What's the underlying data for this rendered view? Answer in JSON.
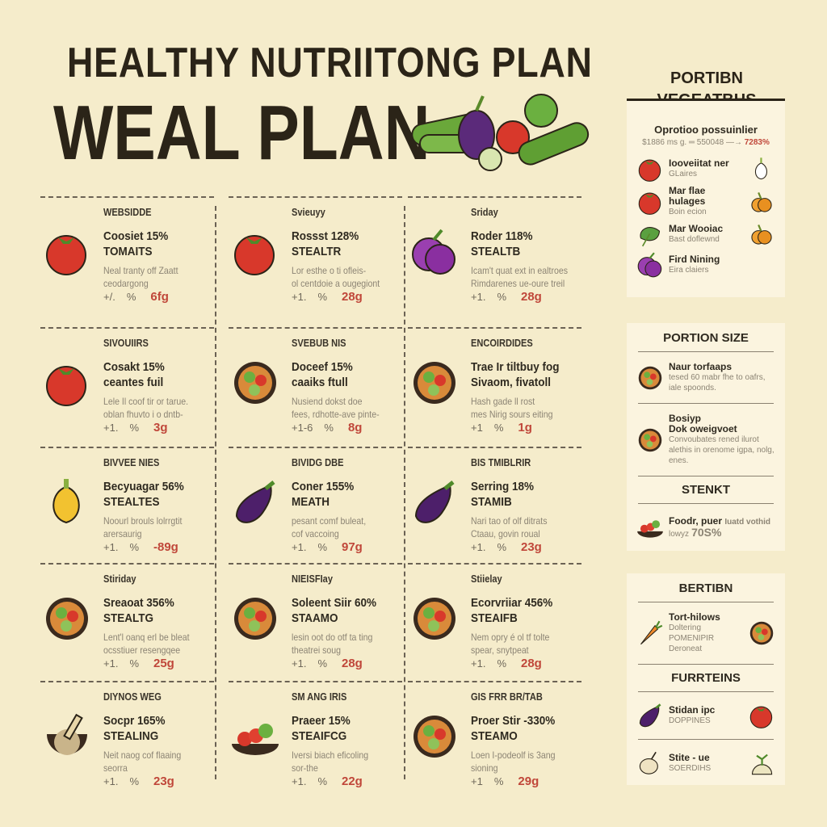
{
  "header": {
    "title_line1": "HEALTHY NUTRIITONG PLAN",
    "title_line2": "WEAL PLAN"
  },
  "colors": {
    "background": "#f5eccb",
    "panel": "#fbf4df",
    "text": "#2f2a20",
    "accent_red": "#c0473a",
    "muted": "#8c8474"
  },
  "grid": [
    {
      "day": "WEBSIDDE",
      "title1": "Coosiet 15%",
      "title2": "TOMAITS",
      "desc1": "Neal tranty off Zaatt",
      "desc2": "ceodargong",
      "stat": "+/.",
      "pct": "%",
      "grams": "6fg",
      "icon": "tomato"
    },
    {
      "day": "Svieuyy",
      "title1": "Rossst 128%",
      "title2": "STEALTR",
      "desc1": "Lor esthe o ti ofleis-",
      "desc2": "ol centdoie a ougegiont",
      "stat": "+1.",
      "pct": "%",
      "grams": "28g",
      "icon": "tomato"
    },
    {
      "day": "Sriday",
      "title1": "Roder 118%",
      "title2": "STEALTB",
      "desc1": "Icam't quat ext in ealtroes",
      "desc2": "Rimdarenes ue-oure treil",
      "stat": "+1.",
      "pct": "%",
      "grams": "28g",
      "icon": "plum"
    },
    {
      "day": "SIVOUIIRS",
      "title1": "Cosakt 15%",
      "title2": "ceantes fuil",
      "desc1": "Lele Il coof tir or tarue.",
      "desc2": "oblan fhuvto i o dntb-",
      "stat": "+1.",
      "pct": "%",
      "grams": "3g",
      "icon": "tomato"
    },
    {
      "day": "SVEBUB NIS",
      "title1": "Doceef 15%",
      "title2": "caaiks ftull",
      "desc1": "Nusiend dokst doe",
      "desc2": "fees, rdhotte-ave pinte-",
      "stat": "+1-6",
      "pct": "%",
      "grams": "8g",
      "icon": "bowl"
    },
    {
      "day": "ENCOIRDIDES",
      "title1": "Trae Ir tiltbuy fog",
      "title2": "Sivaom, fivatoll",
      "desc1": "Hash gade ll rost",
      "desc2": "mes Nirig sours eiting",
      "stat": "+1",
      "pct": "%",
      "grams": "1g",
      "icon": "bowl"
    },
    {
      "day": "BIVVEE NIES",
      "title1": "Becyuagar 56%",
      "title2": "STEALTES",
      "desc1": "Noourl brouls lolrrgtit",
      "desc2": "arersaurig",
      "stat": "+1.",
      "pct": "%",
      "grams": "-89g",
      "icon": "pepper"
    },
    {
      "day": "BIVIDG DBE",
      "title1": "Coner 155%",
      "title2": "MEATH",
      "desc1": "pesant comf buleat,",
      "desc2": "cof vaccoing",
      "stat": "+1.",
      "pct": "%",
      "grams": "97g",
      "icon": "eggplant"
    },
    {
      "day": "BIS TMIBLRIR",
      "title1": "Serring 18%",
      "title2": "STAMIB",
      "desc1": "Nari tao of olf ditrats",
      "desc2": "Ctaau, govin roual",
      "stat": "+1.",
      "pct": "%",
      "grams": "23g",
      "icon": "eggplant"
    },
    {
      "day": "Stiriday",
      "title1": "Sreaoat 356%",
      "title2": "STEALTG",
      "desc1": "Lent'l oanq erl be bleat",
      "desc2": "ocsstiuer resengqee",
      "stat": "+1.",
      "pct": "%",
      "grams": "25g",
      "icon": "bowl"
    },
    {
      "day": "NIEISFIay",
      "title1": "Soleent Siir 60%",
      "title2": "STAAMO",
      "desc1": "lesin oot do otf ta ting",
      "desc2": "theatrei soug",
      "stat": "+1.",
      "pct": "%",
      "grams": "28g",
      "icon": "bowl"
    },
    {
      "day": "Stiielay",
      "title1": "Ecorvriiar 456%",
      "title2": "STEAIFB",
      "desc1": "Nem opry é ol tf tolte",
      "desc2": "spear, snytpeat",
      "stat": "+1.",
      "pct": "%",
      "grams": "28g",
      "icon": "bowl"
    },
    {
      "day": "DIYNOS WEG",
      "title1": "Socpr 165%",
      "title2": "STEALING",
      "desc1": "Neit naog cof flaaing",
      "desc2": "seorra",
      "stat": "+1.",
      "pct": "%",
      "grams": "23g",
      "icon": "mortar"
    },
    {
      "day": "SM ANG IRIS",
      "title1": "Praeer 15%",
      "title2": "STEAIFCG",
      "desc1": "Iversi biach eficoling",
      "desc2": "sor-the",
      "stat": "+1.",
      "pct": "%",
      "grams": "22g",
      "icon": "fruitbowl"
    },
    {
      "day": "GIS FRR BR/TAB",
      "title1": "Proer Stir -330%",
      "title2": "STEAMO",
      "desc1": "Loen I-podeolf is 3ang",
      "desc2": "sioning",
      "stat": "+1",
      "pct": "%",
      "grams": "29g",
      "icon": "bowl"
    }
  ],
  "sidebar": {
    "heading_line1": "PORTIBN",
    "heading_line2": "VEGEATBHS",
    "panel1": {
      "title": "Oprotioo possuinlier",
      "formula_left": "$1886 ms g. ═ 550048 —→",
      "formula_value": "7283%",
      "items": [
        {
          "title": "Iooveiitat ner",
          "sub": "GLaires",
          "icon": "tomato",
          "icon_right": "onion"
        },
        {
          "title": "Mar flae hulages",
          "sub": "Boin ecion",
          "icon": "tomato",
          "icon_right": "pumpkin"
        },
        {
          "title": "Mar Wooiac",
          "sub": "Bast doflewnd",
          "icon": "leafy-greens",
          "icon_right": "pumpkin"
        },
        {
          "title": "Fird Nining",
          "sub": "Eira claiers",
          "icon": "plum",
          "icon_right": ""
        }
      ]
    },
    "panel2": {
      "title": "PORTION SIZE",
      "item1": {
        "title": "Naur torfaaps",
        "sub": "tesed 60 mabr fhe to oafrs, iale spoonds."
      },
      "item2": {
        "title": "Bosiyp",
        "title2": "Dok oweigvoet",
        "sub": "Convoubates rened ilurot alethis in orenome igpa, nolg, enes."
      },
      "section": "STENKT",
      "item3": {
        "title": "Foodr, puer",
        "note": "Iuatd vothid",
        "sub": "lowyz",
        "value": "70S%"
      }
    },
    "panel3": {
      "title": "BERTIBN",
      "item1": {
        "title": "Tort-hilows",
        "sub": "Doltering POMENIPIR Deroneat"
      },
      "section": "FURRTEINS",
      "item2": {
        "title": "Stidan ipc",
        "sub": "DOPPINES"
      },
      "item3": {
        "title": "Stite - ue",
        "sub": "SOERDIHS"
      }
    }
  }
}
